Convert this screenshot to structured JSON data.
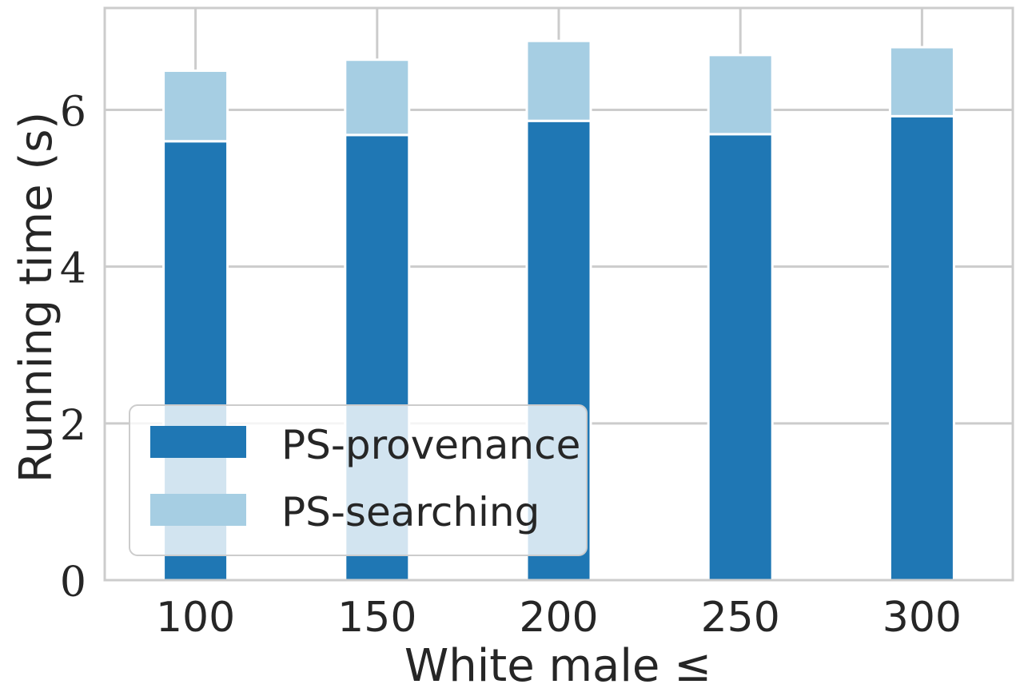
{
  "chart_data": {
    "type": "bar",
    "stacked": true,
    "title": "",
    "xlabel": "White male ≤",
    "ylabel": "Running time (s)",
    "categories": [
      "100",
      "150",
      "200",
      "250",
      "300"
    ],
    "ylim": [
      0,
      7.3
    ],
    "yticks": [
      "0",
      "2",
      "4",
      "6"
    ],
    "grid": true,
    "legend_position": "lower-left",
    "series": [
      {
        "name": "PS-provenance",
        "color": "#1f77b4",
        "values": [
          5.6,
          5.68,
          5.86,
          5.69,
          5.92
        ]
      },
      {
        "name": "PS-searching",
        "color": "#a6cee3",
        "values": [
          0.9,
          0.96,
          1.02,
          1.01,
          0.88
        ]
      }
    ]
  }
}
